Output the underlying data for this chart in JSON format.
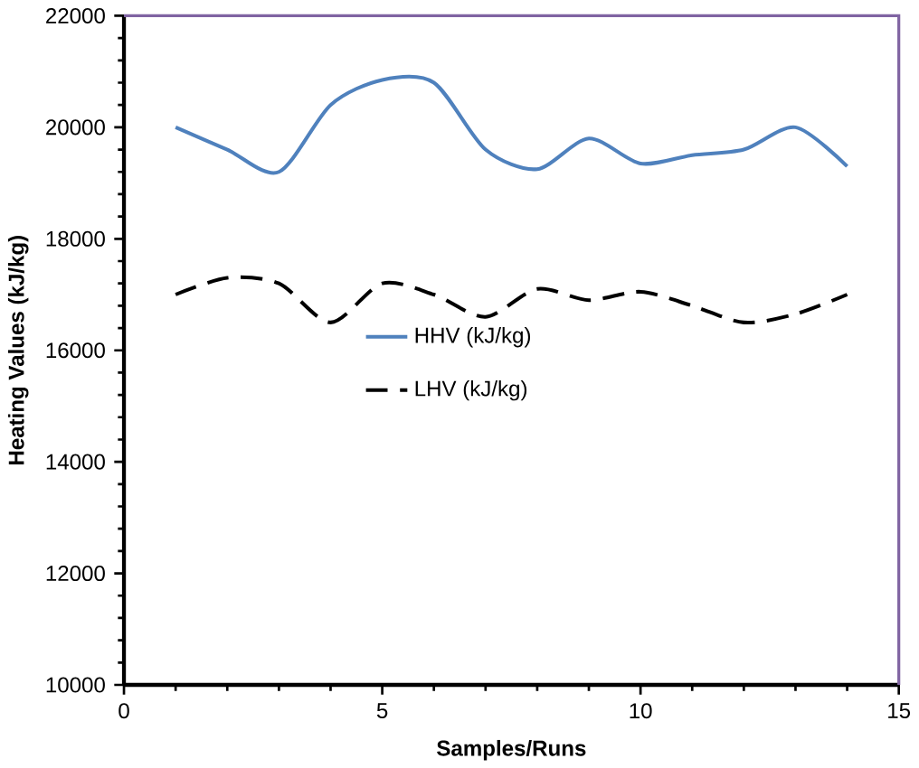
{
  "chart_data": {
    "type": "line",
    "xlabel": "Samples/Runs",
    "ylabel": "Heating Values  (kJ/kg)",
    "x": [
      1,
      2,
      3,
      4,
      5,
      6,
      7,
      8,
      9,
      10,
      11,
      12,
      13,
      14
    ],
    "series": [
      {
        "name": "HHV (kJ/kg)",
        "color": "#4f81bd",
        "line_style": "solid",
        "values": [
          20000,
          19600,
          19200,
          20400,
          20850,
          20800,
          19600,
          19250,
          19800,
          19350,
          19500,
          19600,
          20000,
          19300
        ]
      },
      {
        "name": "LHV (kJ/kg)",
        "color": "#000000",
        "line_style": "dashed",
        "values": [
          17000,
          17300,
          17200,
          16500,
          17200,
          17000,
          16600,
          17100,
          16900,
          17050,
          16800,
          16500,
          16650,
          17000
        ]
      }
    ],
    "xlim": [
      0,
      15
    ],
    "ylim": [
      10000,
      22000
    ],
    "xticks": [
      0,
      5,
      10,
      15
    ],
    "yticks": [
      10000,
      12000,
      14000,
      16000,
      18000,
      20000,
      22000
    ],
    "grid": false,
    "legend": "center",
    "marker": "none"
  }
}
